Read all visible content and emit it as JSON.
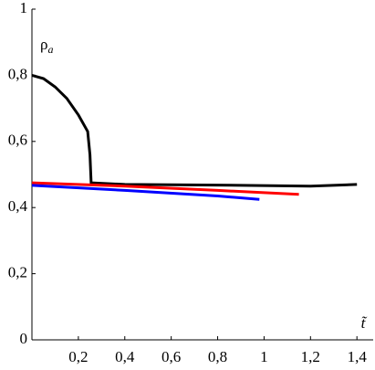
{
  "chart_data": {
    "type": "line",
    "y_label": "ρ",
    "y_label_subscript": "a",
    "x_label": "t̃",
    "xlim": [
      0,
      1.47
    ],
    "ylim": [
      0,
      1
    ],
    "xticks": [
      {
        "value": 0.2,
        "label": "0,2"
      },
      {
        "value": 0.4,
        "label": "0,4"
      },
      {
        "value": 0.6,
        "label": "0,6"
      },
      {
        "value": 0.8,
        "label": "0,8"
      },
      1,
      {
        "value": 1.2,
        "label": "1,2"
      },
      {
        "value": 1.4,
        "label": "1,4"
      }
    ],
    "yticks": [
      0,
      {
        "value": 0.2,
        "label": "0,2"
      },
      {
        "value": 0.4,
        "label": "0,4"
      },
      {
        "value": 0.6,
        "label": "0,6"
      },
      {
        "value": 0.8,
        "label": "0,8"
      },
      1
    ],
    "grid": false,
    "series": [
      {
        "color": "#000000",
        "x": [
          0,
          0.05,
          0.1,
          0.15,
          0.2,
          0.24,
          0.25,
          0.255,
          0.4,
          0.8,
          1.2,
          1.4
        ],
        "values": [
          0.8,
          0.79,
          0.765,
          0.73,
          0.68,
          0.63,
          0.56,
          0.475,
          0.47,
          0.468,
          0.465,
          0.47
        ]
      },
      {
        "color": "#ff0000",
        "x": [
          0,
          0.4,
          0.8,
          1.15
        ],
        "values": [
          0.475,
          0.465,
          0.452,
          0.44
        ]
      },
      {
        "color": "#0000ff",
        "x": [
          0,
          0.4,
          0.8,
          0.98
        ],
        "values": [
          0.467,
          0.452,
          0.435,
          0.425
        ]
      }
    ]
  }
}
